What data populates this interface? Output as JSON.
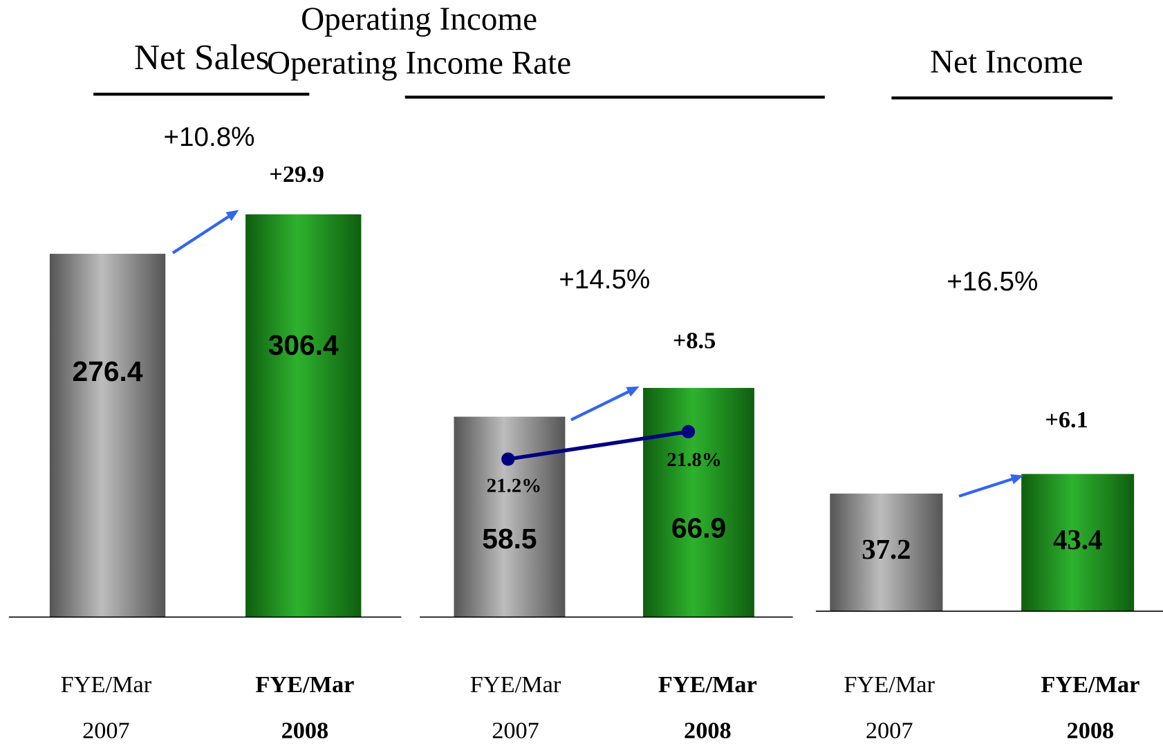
{
  "chart_data": [
    {
      "type": "bar",
      "title": "Net Sales",
      "categories": [
        [
          "FYE/Mar",
          "2007"
        ],
        [
          "FYE/Mar",
          "2008"
        ]
      ],
      "values": [
        276.4,
        306.4
      ],
      "colors": [
        "#9a9a9a",
        "#1cab1c"
      ],
      "change": "+29.9",
      "change_rate": "+10.8%"
    },
    {
      "type": "bar",
      "title": "Operating Income",
      "subtitle": "Operating Income Rate",
      "categories": [
        [
          "FYE/Mar",
          "2007"
        ],
        [
          "FYE/Mar",
          "2008"
        ]
      ],
      "values": [
        58.5,
        66.9
      ],
      "colors": [
        "#9a9a9a",
        "#1cab1c"
      ],
      "change": "+8.5",
      "change_rate": "+14.5%",
      "line": {
        "name": "Operating Income Rate",
        "values": [
          21.2,
          21.8
        ],
        "value_labels": [
          "21.2%",
          "21.8%"
        ],
        "color": "#000080"
      }
    },
    {
      "type": "bar",
      "title": "Net Income",
      "categories": [
        [
          "FYE/Mar",
          "2007"
        ],
        [
          "FYE/Mar",
          "2008"
        ]
      ],
      "values": [
        37.2,
        43.4
      ],
      "colors": [
        "#9a9a9a",
        "#1cab1c"
      ],
      "change": "+6.1",
      "change_rate": "+16.5%"
    }
  ]
}
